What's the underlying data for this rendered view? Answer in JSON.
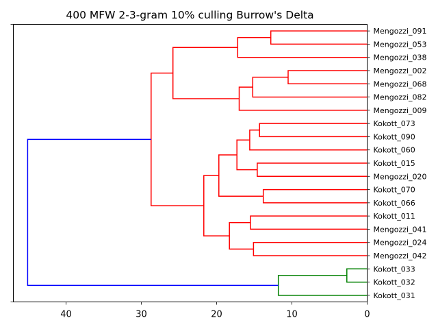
{
  "chart_data": {
    "type": "dendrogram",
    "title": "400 MFW 2-3-gram 10% culling Burrow's Delta",
    "orientation": "left",
    "xlabel": "",
    "ylabel": "",
    "xlim": [
      0,
      47
    ],
    "xticks": [
      0,
      10,
      20,
      30,
      40
    ],
    "leaves": [
      "Mengozzi_091",
      "Mengozzi_053",
      "Mengozzi_038",
      "Mengozzi_002",
      "Mengozzi_068",
      "Mengozzi_082",
      "Mengozzi_009",
      "Kokott_073",
      "Kokott_090",
      "Kokott_060",
      "Kokott_015",
      "Mengozzi_020",
      "Kokott_070",
      "Kokott_066",
      "Kokott_011",
      "Mengozzi_041",
      "Mengozzi_024",
      "Mengozzi_042",
      "Kokott_033",
      "Kokott_032",
      "Kokott_031"
    ],
    "colors": {
      "cluster_a": "#ff0000",
      "cluster_b": "#008000",
      "root": "#0000ff"
    },
    "merges": [
      {
        "id": "m01",
        "a": "leaf:0",
        "b": "leaf:1",
        "height": 12.8,
        "color": "cluster_a"
      },
      {
        "id": "m02",
        "a": "m01",
        "b": "leaf:2",
        "height": 17.2,
        "color": "cluster_a"
      },
      {
        "id": "m03",
        "a": "leaf:3",
        "b": "leaf:4",
        "height": 10.5,
        "color": "cluster_a"
      },
      {
        "id": "m04",
        "a": "m03",
        "b": "leaf:5",
        "height": 15.2,
        "color": "cluster_a"
      },
      {
        "id": "m05",
        "a": "m04",
        "b": "leaf:6",
        "height": 17.0,
        "color": "cluster_a"
      },
      {
        "id": "m06",
        "a": "m02",
        "b": "m05",
        "height": 25.8,
        "color": "cluster_a"
      },
      {
        "id": "m07",
        "a": "leaf:7",
        "b": "leaf:8",
        "height": 14.3,
        "color": "cluster_a"
      },
      {
        "id": "m08",
        "a": "m07",
        "b": "leaf:9",
        "height": 15.6,
        "color": "cluster_a"
      },
      {
        "id": "m09",
        "a": "leaf:10",
        "b": "leaf:11",
        "height": 14.6,
        "color": "cluster_a"
      },
      {
        "id": "m10",
        "a": "m08",
        "b": "m09",
        "height": 17.3,
        "color": "cluster_a"
      },
      {
        "id": "m11",
        "a": "leaf:12",
        "b": "leaf:13",
        "height": 13.8,
        "color": "cluster_a"
      },
      {
        "id": "m12",
        "a": "m10",
        "b": "m11",
        "height": 19.7,
        "color": "cluster_a"
      },
      {
        "id": "m13",
        "a": "leaf:14",
        "b": "leaf:15",
        "height": 15.5,
        "color": "cluster_a"
      },
      {
        "id": "m14",
        "a": "leaf:16",
        "b": "leaf:17",
        "height": 15.1,
        "color": "cluster_a"
      },
      {
        "id": "m15",
        "a": "m13",
        "b": "m14",
        "height": 18.3,
        "color": "cluster_a"
      },
      {
        "id": "m16",
        "a": "m12",
        "b": "m15",
        "height": 21.7,
        "color": "cluster_a"
      },
      {
        "id": "m17",
        "a": "m06",
        "b": "m16",
        "height": 28.7,
        "color": "cluster_a"
      },
      {
        "id": "m18",
        "a": "leaf:18",
        "b": "leaf:19",
        "height": 2.7,
        "color": "cluster_b"
      },
      {
        "id": "m19",
        "a": "m18",
        "b": "leaf:20",
        "height": 11.8,
        "color": "cluster_b"
      },
      {
        "id": "m20",
        "a": "m17",
        "b": "m19",
        "height": 45.1,
        "color": "root"
      }
    ]
  }
}
